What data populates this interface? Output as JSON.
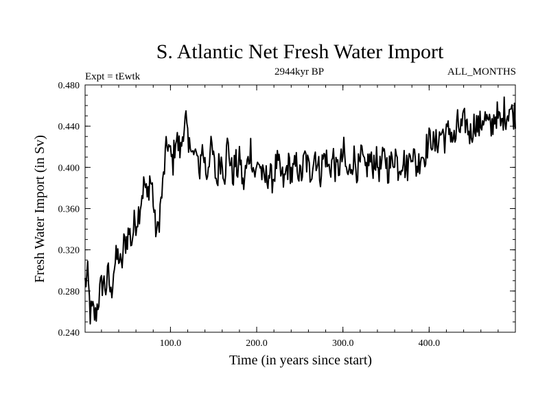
{
  "chart_data": {
    "type": "line",
    "title": "S. Atlantic Net Fresh Water Import",
    "subtitle_left": "Expt = tEwtk",
    "subtitle_center": "2944kyr BP",
    "subtitle_right": "ALL_MONTHS",
    "xlabel": "Time (in years since start)",
    "ylabel": "Fresh Water Import (in Sv)",
    "xlim": [
      1,
      500
    ],
    "ylim": [
      0.24,
      0.48
    ],
    "x_tick_values": [
      100,
      200,
      300,
      400
    ],
    "x_tick_labels": [
      "100.0",
      "200.0",
      "300.0",
      "400.0"
    ],
    "y_tick_values": [
      0.24,
      0.28,
      0.32,
      0.36,
      0.4,
      0.44,
      0.48
    ],
    "y_tick_labels": [
      "0.240",
      "0.280",
      "0.320",
      "0.360",
      "0.400",
      "0.440",
      "0.480"
    ],
    "grid": false,
    "series": [
      {
        "name": "Fresh Water Import",
        "x_start": 1,
        "x_step": 3,
        "values": [
          0.288,
          0.294,
          0.258,
          0.26,
          0.255,
          0.27,
          0.282,
          0.29,
          0.283,
          0.296,
          0.274,
          0.302,
          0.31,
          0.315,
          0.3,
          0.325,
          0.33,
          0.338,
          0.328,
          0.345,
          0.35,
          0.36,
          0.375,
          0.385,
          0.368,
          0.39,
          0.38,
          0.345,
          0.335,
          0.36,
          0.38,
          0.41,
          0.425,
          0.41,
          0.405,
          0.43,
          0.422,
          0.415,
          0.44,
          0.445,
          0.412,
          0.43,
          0.408,
          0.415,
          0.39,
          0.42,
          0.41,
          0.392,
          0.412,
          0.418,
          0.4,
          0.385,
          0.41,
          0.405,
          0.395,
          0.422,
          0.41,
          0.39,
          0.405,
          0.398,
          0.41,
          0.38,
          0.395,
          0.405,
          0.42,
          0.4,
          0.392,
          0.408,
          0.398,
          0.385,
          0.39,
          0.395,
          0.388,
          0.392,
          0.405,
          0.398,
          0.39,
          0.385,
          0.4,
          0.402,
          0.392,
          0.398,
          0.405,
          0.39,
          0.396,
          0.41,
          0.402,
          0.394,
          0.405,
          0.415,
          0.4,
          0.395,
          0.408,
          0.412,
          0.398,
          0.402,
          0.41,
          0.395,
          0.4,
          0.405,
          0.415,
          0.395,
          0.392,
          0.405,
          0.41,
          0.4,
          0.398,
          0.412,
          0.395,
          0.402,
          0.408,
          0.4,
          0.41,
          0.403,
          0.398,
          0.405,
          0.412,
          0.398,
          0.402,
          0.408,
          0.415,
          0.4,
          0.405,
          0.41,
          0.398,
          0.402,
          0.42,
          0.412,
          0.4,
          0.405,
          0.415,
          0.41,
          0.42,
          0.425,
          0.43,
          0.418,
          0.425,
          0.43,
          0.435,
          0.428,
          0.432,
          0.438,
          0.43,
          0.425,
          0.442,
          0.436,
          0.44,
          0.445,
          0.438,
          0.432,
          0.44,
          0.445,
          0.438,
          0.442,
          0.45,
          0.446,
          0.44,
          0.436,
          0.448,
          0.452,
          0.445,
          0.44,
          0.455,
          0.45,
          0.46,
          0.452
        ]
      }
    ]
  }
}
